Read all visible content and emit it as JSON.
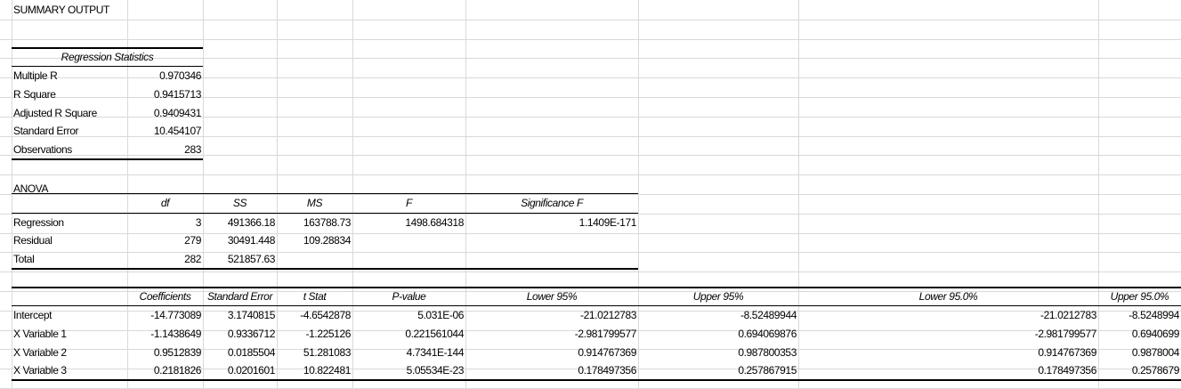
{
  "title": "SUMMARY OUTPUT",
  "regression_statistics": {
    "header": "Regression Statistics",
    "rows": [
      {
        "label": "Multiple R",
        "value": "0.970346"
      },
      {
        "label": "R Square",
        "value": "0.9415713"
      },
      {
        "label": "Adjusted R Square",
        "value": "0.9409431"
      },
      {
        "label": "Standard Error",
        "value": "10.454107"
      },
      {
        "label": "Observations",
        "value": "283"
      }
    ]
  },
  "anova": {
    "title": "ANOVA",
    "headers": [
      "df",
      "SS",
      "MS",
      "F",
      "Significance F"
    ],
    "rows": [
      {
        "label": "Regression",
        "cells": [
          "3",
          "491366.18",
          "163788.73",
          "1498.684318",
          "1.1409E-171"
        ]
      },
      {
        "label": "Residual",
        "cells": [
          "279",
          "30491.448",
          "109.28834",
          "",
          ""
        ]
      },
      {
        "label": "Total",
        "cells": [
          "282",
          "521857.63",
          "",
          "",
          ""
        ]
      }
    ]
  },
  "coefficients": {
    "headers": [
      "Coefficients",
      "Standard Error",
      "t Stat",
      "P-value",
      "Lower 95%",
      "Upper 95%",
      "Lower 95.0%",
      "Upper 95.0%"
    ],
    "rows": [
      {
        "label": "Intercept",
        "cells": [
          "-14.773089",
          "3.1740815",
          "-4.6542878",
          "5.031E-06",
          "-21.0212783",
          "-8.52489944",
          "-21.0212783",
          "-8.5248994"
        ]
      },
      {
        "label": "X Variable 1",
        "cells": [
          "-1.1438649",
          "0.9336712",
          "-1.225126",
          "0.221561044",
          "-2.981799577",
          "0.694069876",
          "-2.981799577",
          "0.6940699"
        ]
      },
      {
        "label": "X Variable 2",
        "cells": [
          "0.9512839",
          "0.0185504",
          "51.281083",
          "4.7341E-144",
          "0.914767369",
          "0.987800353",
          "0.914767369",
          "0.9878004"
        ]
      },
      {
        "label": "X Variable 3",
        "cells": [
          "0.2181826",
          "0.0201601",
          "10.822481",
          "5.05534E-23",
          "0.178497356",
          "0.257867915",
          "0.178497356",
          "0.2578679"
        ]
      }
    ]
  }
}
